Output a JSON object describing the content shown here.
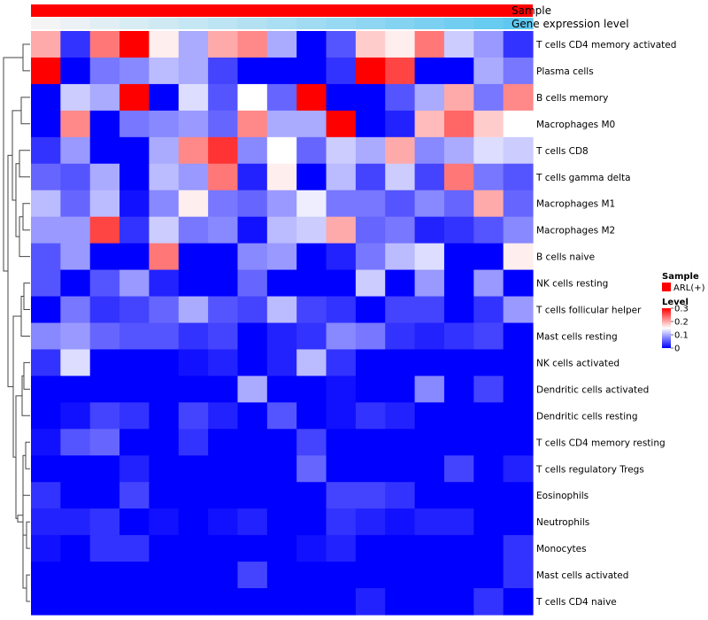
{
  "chart_data": {
    "type": "heatmap",
    "title": "",
    "column_annotations": [
      {
        "name": "Sample",
        "label": "Sample",
        "color": "#ff0000"
      },
      {
        "name": "Gene expression level",
        "label": "Gene expression level",
        "gradient": [
          "#f4f4f4",
          "#5fc8f0"
        ]
      }
    ],
    "rows": [
      "T cells CD4 memory activated",
      "Plasma cells",
      "B cells memory",
      "Macrophages M0",
      "T cells CD8",
      "T cells gamma delta",
      "Macrophages M1",
      "Macrophages M2",
      "B cells naive",
      "NK cells resting",
      "T cells follicular helper",
      "Mast cells resting",
      "NK cells activated",
      "Dendritic cells activated",
      "Dendritic cells resting",
      "T cells CD4 memory resting",
      "T cells regulatory  Tregs",
      "Eosinophils",
      "Neutrophils",
      "Monocytes",
      "Mast cells activated",
      "T cells CD4 naive"
    ],
    "n_columns": 17,
    "values": [
      [
        0.2,
        0.03,
        0.23,
        0.3,
        0.16,
        0.1,
        0.2,
        0.22,
        0.1,
        0.0,
        0.05,
        0.18,
        0.16,
        0.23,
        0.12,
        0.09,
        0.03
      ],
      [
        0.3,
        0.0,
        0.07,
        0.08,
        0.11,
        0.1,
        0.04,
        0.0,
        0.0,
        0.0,
        0.03,
        0.3,
        0.26,
        0.0,
        0.0,
        0.1,
        0.07
      ],
      [
        0.0,
        0.12,
        0.1,
        0.3,
        0.0,
        0.13,
        0.05,
        0.15,
        0.06,
        0.3,
        0.0,
        0.0,
        0.05,
        0.1,
        0.2,
        0.07,
        0.22
      ],
      [
        0.0,
        0.22,
        0.0,
        0.07,
        0.08,
        0.09,
        0.06,
        0.22,
        0.1,
        0.1,
        0.3,
        0.0,
        0.02,
        0.19,
        0.24,
        0.18,
        0.15
      ],
      [
        0.03,
        0.09,
        0.0,
        0.0,
        0.1,
        0.22,
        0.27,
        0.08,
        0.15,
        0.06,
        0.12,
        0.1,
        0.2,
        0.08,
        0.1,
        0.13,
        0.12
      ],
      [
        0.06,
        0.05,
        0.1,
        0.0,
        0.11,
        0.09,
        0.23,
        0.02,
        0.16,
        0.0,
        0.11,
        0.04,
        0.12,
        0.04,
        0.23,
        0.07,
        0.05
      ],
      [
        0.11,
        0.06,
        0.11,
        0.01,
        0.08,
        0.16,
        0.07,
        0.06,
        0.09,
        0.14,
        0.07,
        0.07,
        0.05,
        0.08,
        0.06,
        0.2,
        0.06
      ],
      [
        0.09,
        0.09,
        0.26,
        0.03,
        0.12,
        0.07,
        0.08,
        0.01,
        0.11,
        0.12,
        0.2,
        0.06,
        0.07,
        0.02,
        0.03,
        0.05,
        0.08
      ],
      [
        0.05,
        0.09,
        0.0,
        0.0,
        0.23,
        0.0,
        0.0,
        0.08,
        0.09,
        0.0,
        0.02,
        0.07,
        0.11,
        0.13,
        0.0,
        0.0,
        0.16
      ],
      [
        0.05,
        0.0,
        0.05,
        0.09,
        0.02,
        0.0,
        0.0,
        0.06,
        0.0,
        0.0,
        0.0,
        0.12,
        0.0,
        0.09,
        0.0,
        0.09,
        0.0
      ],
      [
        0.0,
        0.07,
        0.03,
        0.04,
        0.06,
        0.1,
        0.05,
        0.04,
        0.11,
        0.04,
        0.03,
        0.0,
        0.04,
        0.04,
        0.0,
        0.03,
        0.09
      ],
      [
        0.08,
        0.09,
        0.06,
        0.05,
        0.05,
        0.03,
        0.04,
        0.0,
        0.02,
        0.03,
        0.08,
        0.07,
        0.03,
        0.02,
        0.03,
        0.04,
        0.0
      ],
      [
        0.03,
        0.13,
        0.0,
        0.0,
        0.0,
        0.01,
        0.02,
        0.0,
        0.02,
        0.11,
        0.03,
        0.0,
        0.0,
        0.0,
        0.0,
        0.0,
        0.0
      ],
      [
        0.0,
        0.0,
        0.0,
        0.0,
        0.0,
        0.0,
        0.0,
        0.1,
        0.0,
        0.0,
        0.01,
        0.0,
        0.0,
        0.08,
        0.0,
        0.04,
        0.0
      ],
      [
        0.0,
        0.01,
        0.04,
        0.03,
        0.0,
        0.04,
        0.02,
        0.0,
        0.05,
        0.0,
        0.01,
        0.03,
        0.02,
        0.0,
        0.0,
        0.0,
        0.0
      ],
      [
        0.01,
        0.05,
        0.06,
        0.0,
        0.0,
        0.03,
        0.0,
        0.0,
        0.0,
        0.04,
        0.0,
        0.0,
        0.0,
        0.0,
        0.0,
        0.0,
        0.0
      ],
      [
        0.0,
        0.0,
        0.0,
        0.02,
        0.0,
        0.0,
        0.0,
        0.0,
        0.0,
        0.06,
        0.0,
        0.0,
        0.0,
        0.0,
        0.04,
        0.0,
        0.02
      ],
      [
        0.03,
        0.0,
        0.0,
        0.04,
        0.0,
        0.0,
        0.0,
        0.0,
        0.0,
        0.0,
        0.04,
        0.04,
        0.03,
        0.0,
        0.0,
        0.0,
        0.0
      ],
      [
        0.02,
        0.02,
        0.03,
        0.0,
        0.01,
        0.0,
        0.01,
        0.02,
        0.0,
        0.0,
        0.03,
        0.02,
        0.01,
        0.02,
        0.02,
        0.0,
        0.0
      ],
      [
        0.01,
        0.0,
        0.03,
        0.03,
        0.0,
        0.0,
        0.0,
        0.0,
        0.0,
        0.01,
        0.02,
        0.0,
        0.0,
        0.0,
        0.0,
        0.0,
        0.03
      ],
      [
        0.0,
        0.0,
        0.0,
        0.0,
        0.0,
        0.0,
        0.0,
        0.04,
        0.0,
        0.0,
        0.0,
        0.0,
        0.0,
        0.0,
        0.0,
        0.0,
        0.03
      ],
      [
        0.0,
        0.0,
        0.0,
        0.0,
        0.0,
        0.0,
        0.0,
        0.0,
        0.0,
        0.0,
        0.0,
        0.02,
        0.0,
        0.0,
        0.0,
        0.03,
        0.0
      ]
    ],
    "color_scale": {
      "low": "#0000ff",
      "mid": "#ffffff",
      "high": "#ff0000",
      "min": 0,
      "mid_value": 0.15,
      "max": 0.3
    },
    "legend": {
      "sample_title": "Sample",
      "sample_entries": [
        {
          "label": "ARL(+)",
          "color": "#ff0000"
        }
      ],
      "level_title": "Level",
      "level_ticks": [
        "0.3",
        "0.2",
        "0.1",
        "0"
      ]
    },
    "dendrogram": "row"
  }
}
